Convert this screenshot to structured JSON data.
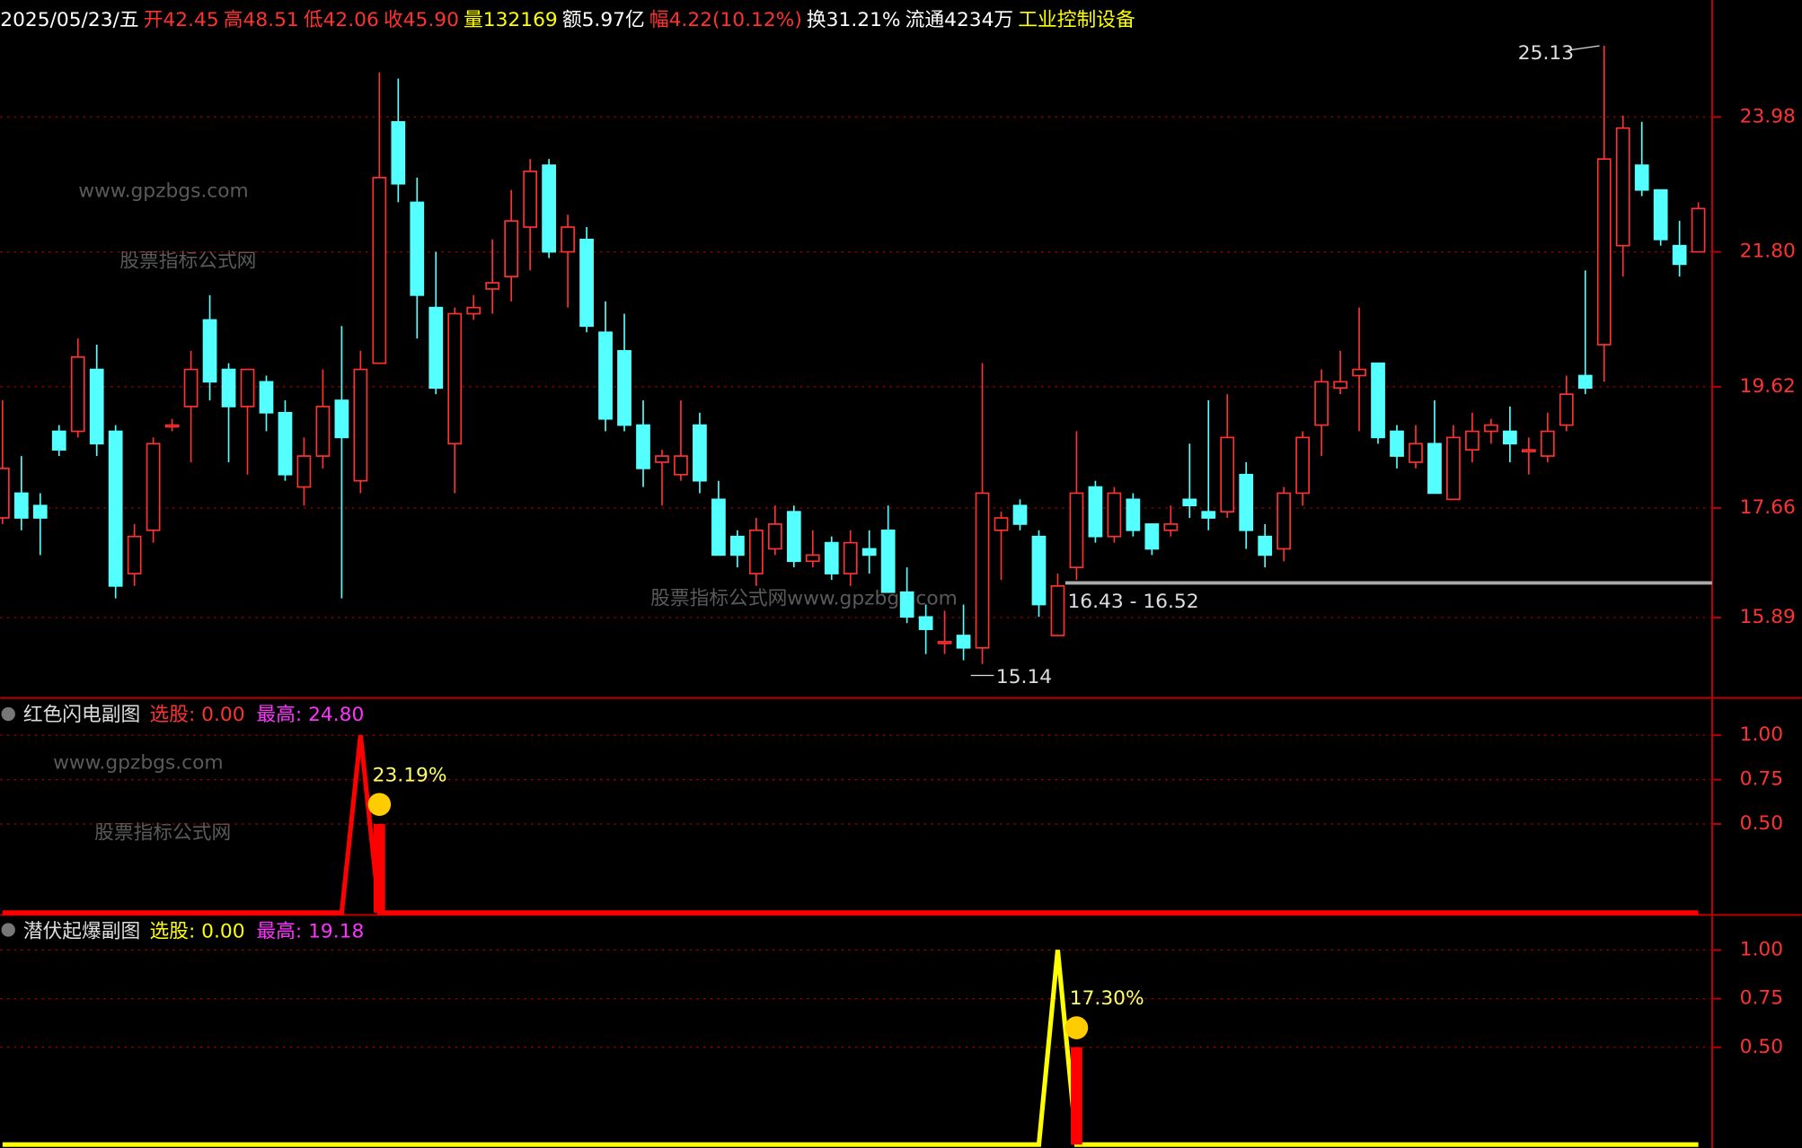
{
  "header": [
    {
      "text": "2025/05/23/五",
      "color": "#ffffff"
    },
    {
      "text": "开42.45",
      "color": "#ff3232"
    },
    {
      "text": "高48.51",
      "color": "#ff3232"
    },
    {
      "text": "低42.06",
      "color": "#ff3232"
    },
    {
      "text": "收45.90",
      "color": "#ff3232"
    },
    {
      "text": "量132169",
      "color": "#ffff00"
    },
    {
      "text": "额5.97亿",
      "color": "#ffffff"
    },
    {
      "text": "幅4.22(10.12%)",
      "color": "#ff3232"
    },
    {
      "text": "换31.21%",
      "color": "#ffffff"
    },
    {
      "text": "流通4234万",
      "color": "#ffffff"
    },
    {
      "text": "工业控制设备",
      "color": "#ffff00"
    }
  ],
  "watermarks": [
    "www.gpzbgs.com",
    "股票指标公式网",
    "股票指标公式网www.gpzbgs.com",
    "www.gpzbgs.com",
    "股票指标公式网"
  ],
  "chart_data": [
    {
      "type": "candlestick",
      "up_color": "#ff3232",
      "down_color": "#54ffff",
      "ylim": [
        14.59,
        25.87
      ],
      "yticks": [
        15.89,
        17.66,
        19.62,
        {
          "value": 21.8,
          "label": "21.80"
        },
        23.98
      ],
      "grid": true,
      "open": [
        17.5,
        17.9,
        17.7,
        18.9,
        18.9,
        19.9,
        18.9,
        16.6,
        17.3,
        19.0,
        19.3,
        20.7,
        19.9,
        19.3,
        19.7,
        19.2,
        18.0,
        18.5,
        19.4,
        18.1,
        20.0,
        23.9,
        22.6,
        20.9,
        18.7,
        20.8,
        21.2,
        21.4,
        22.2,
        23.2,
        21.8,
        22.0,
        20.5,
        20.2,
        19.0,
        18.4,
        18.2,
        19.0,
        17.8,
        17.2,
        16.6,
        17.0,
        17.6,
        16.8,
        17.1,
        16.6,
        17.0,
        17.3,
        16.3,
        15.9,
        15.5,
        15.6,
        15.4,
        17.3,
        17.7,
        17.2,
        15.6,
        16.7,
        18.0,
        17.2,
        17.8,
        17.4,
        17.3,
        17.8,
        17.6,
        17.6,
        18.2,
        17.2,
        17.0,
        17.9,
        19.0,
        19.6,
        19.8,
        20.0,
        18.9,
        18.4,
        18.7,
        17.8,
        18.6,
        18.9,
        18.9,
        18.6,
        18.5,
        19.0,
        19.8,
        20.3,
        21.9,
        23.2,
        22.8,
        21.9,
        21.8
      ],
      "high": [
        19.4,
        18.5,
        17.9,
        19.0,
        20.4,
        20.3,
        19.0,
        17.4,
        18.8,
        19.1,
        20.2,
        21.1,
        20.0,
        19.9,
        19.8,
        19.4,
        18.8,
        19.9,
        20.6,
        20.2,
        24.7,
        24.6,
        23.0,
        21.8,
        20.9,
        21.1,
        22.0,
        22.8,
        23.3,
        23.3,
        22.4,
        22.2,
        21.0,
        20.8,
        19.4,
        18.6,
        19.4,
        19.2,
        18.1,
        17.3,
        17.5,
        17.7,
        17.7,
        17.3,
        17.2,
        17.3,
        17.3,
        17.7,
        16.7,
        16.1,
        16.0,
        16.1,
        20.0,
        17.6,
        17.8,
        17.3,
        16.6,
        18.9,
        18.1,
        18.0,
        17.9,
        17.4,
        17.7,
        18.7,
        19.4,
        19.5,
        18.4,
        17.4,
        18.0,
        18.9,
        19.9,
        20.2,
        20.9,
        20.0,
        19.0,
        19.0,
        19.4,
        19.0,
        19.2,
        19.1,
        19.3,
        18.8,
        19.2,
        19.8,
        21.5,
        25.13,
        24.0,
        23.9,
        22.8,
        22.3,
        22.6
      ],
      "low": [
        17.4,
        17.3,
        16.9,
        18.5,
        18.8,
        18.5,
        16.2,
        16.4,
        17.1,
        18.9,
        18.4,
        19.4,
        18.4,
        18.2,
        18.9,
        18.1,
        17.7,
        18.3,
        16.2,
        17.9,
        20.0,
        22.6,
        20.4,
        19.5,
        17.9,
        20.7,
        20.8,
        21.0,
        21.5,
        21.7,
        20.9,
        20.5,
        18.9,
        18.9,
        18.0,
        17.7,
        18.1,
        17.9,
        16.9,
        16.7,
        16.4,
        16.9,
        16.7,
        16.7,
        16.5,
        16.4,
        16.6,
        16.3,
        15.8,
        15.3,
        15.3,
        15.2,
        15.14,
        16.5,
        17.3,
        15.9,
        15.6,
        16.5,
        17.1,
        17.1,
        17.2,
        16.9,
        17.2,
        17.5,
        17.3,
        17.5,
        17.0,
        16.7,
        16.8,
        17.7,
        18.5,
        19.5,
        18.9,
        18.7,
        18.3,
        18.3,
        17.9,
        17.8,
        18.4,
        18.7,
        18.4,
        18.2,
        18.4,
        18.9,
        19.5,
        19.7,
        21.4,
        22.7,
        21.9,
        21.4,
        21.8
      ],
      "close": [
        18.3,
        17.5,
        17.5,
        18.6,
        20.1,
        18.7,
        16.4,
        17.2,
        18.7,
        19.0,
        19.9,
        19.7,
        19.3,
        19.9,
        19.2,
        18.2,
        18.5,
        19.3,
        18.8,
        19.9,
        23.0,
        22.9,
        21.1,
        19.6,
        20.8,
        20.9,
        21.3,
        22.3,
        23.1,
        21.8,
        22.2,
        20.6,
        19.1,
        19.0,
        18.3,
        18.5,
        18.5,
        18.1,
        16.9,
        16.9,
        17.3,
        17.4,
        16.8,
        16.9,
        16.6,
        17.1,
        16.9,
        16.3,
        15.9,
        15.7,
        15.5,
        15.4,
        17.9,
        17.5,
        17.4,
        16.1,
        16.4,
        17.9,
        17.2,
        17.9,
        17.3,
        17.0,
        17.4,
        17.7,
        17.5,
        18.8,
        17.3,
        16.9,
        17.9,
        18.8,
        19.7,
        19.7,
        19.9,
        18.8,
        18.5,
        18.7,
        17.9,
        18.8,
        18.9,
        19.0,
        18.7,
        18.6,
        18.9,
        19.5,
        19.6,
        23.3,
        23.8,
        22.8,
        22.0,
        21.6,
        22.5
      ],
      "high_note": "25.13",
      "low_note": "15.14",
      "support_line": {
        "value": 16.45,
        "label": "16.43 - 16.52"
      }
    },
    {
      "type": "signal",
      "title": "红色闪电副图",
      "pick_label": "选股: 0.00",
      "max_label": "最高: 24.80",
      "pick_color": "#ff3232",
      "ylim": [
        0,
        1.21
      ],
      "yticks": [
        {
          "value": 0.5,
          "label": "0.50"
        },
        {
          "value": 0.75,
          "label": "0.75"
        },
        {
          "value": 1,
          "label": "1.00"
        }
      ],
      "grid": true,
      "line_color": "#ff0000",
      "bar_color": "#ff0000",
      "bar_index": 20,
      "bar_value": 0.5,
      "annotation": "23.19%",
      "values": [
        0,
        0,
        0,
        0,
        0,
        0,
        0,
        0,
        0,
        0,
        0,
        0,
        0,
        0,
        0,
        0,
        0,
        0,
        0,
        1,
        0,
        0,
        0,
        0,
        0,
        0,
        0,
        0,
        0,
        0,
        0,
        0,
        0,
        0,
        0,
        0,
        0,
        0,
        0,
        0,
        0,
        0,
        0,
        0,
        0,
        0,
        0,
        0,
        0,
        0,
        0,
        0,
        0,
        0,
        0,
        0,
        0,
        0,
        0,
        0,
        0,
        0,
        0,
        0,
        0,
        0,
        0,
        0,
        0,
        0,
        0,
        0,
        0,
        0,
        0,
        0,
        0,
        0,
        0,
        0,
        0,
        0,
        0,
        0,
        0,
        0,
        0,
        0,
        0,
        0,
        0
      ]
    },
    {
      "type": "signal",
      "title": "潜伏起爆副图",
      "pick_label": "选股: 0.00",
      "max_label": "最高: 19.18",
      "pick_color": "#ffff00",
      "ylim": [
        0,
        1.18
      ],
      "yticks": [
        {
          "value": 0.5,
          "label": "0.50"
        },
        {
          "value": 0.75,
          "label": "0.75"
        },
        {
          "value": 1,
          "label": "1.00"
        }
      ],
      "grid": true,
      "line_color": "#ffff00",
      "bar_color": "#ff0000",
      "bar_index": 57,
      "bar_value": 0.5,
      "annotation": "17.30%",
      "values": [
        0,
        0,
        0,
        0,
        0,
        0,
        0,
        0,
        0,
        0,
        0,
        0,
        0,
        0,
        0,
        0,
        0,
        0,
        0,
        0,
        0,
        0,
        0,
        0,
        0,
        0,
        0,
        0,
        0,
        0,
        0,
        0,
        0,
        0,
        0,
        0,
        0,
        0,
        0,
        0,
        0,
        0,
        0,
        0,
        0,
        0,
        0,
        0,
        0,
        0,
        0,
        0,
        0,
        0,
        0,
        0,
        1,
        0,
        0,
        0,
        0,
        0,
        0,
        0,
        0,
        0,
        0,
        0,
        0,
        0,
        0,
        0,
        0,
        0,
        0,
        0,
        0,
        0,
        0,
        0,
        0,
        0,
        0,
        0,
        0,
        0,
        0,
        0,
        0,
        0,
        0
      ]
    }
  ]
}
